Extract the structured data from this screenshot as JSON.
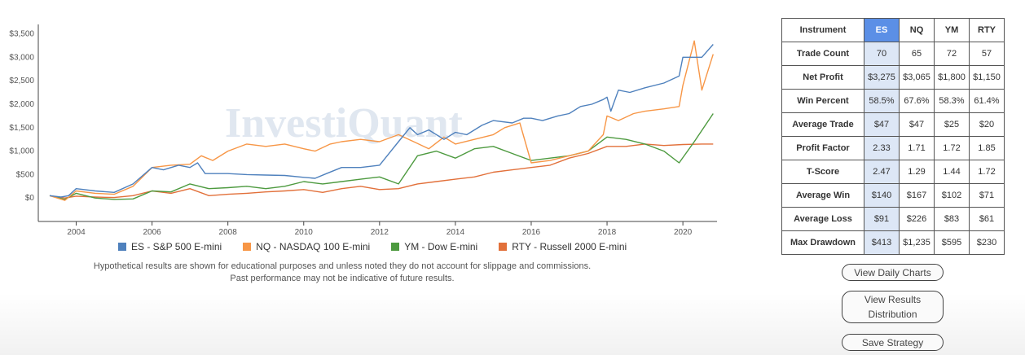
{
  "chart_data": {
    "type": "line",
    "ylim": [
      -500,
      3700
    ],
    "xlim": [
      2003.0,
      2020.9
    ],
    "y_ticks": [
      "$0",
      "$500",
      "$1,000",
      "$1,500",
      "$2,000",
      "$2,500",
      "$3,000",
      "$3,500"
    ],
    "y_tick_values": [
      0,
      500,
      1000,
      1500,
      2000,
      2500,
      3000,
      3500
    ],
    "x_ticks": [
      "2004",
      "2006",
      "2008",
      "2010",
      "2012",
      "2014",
      "2016",
      "2018",
      "2020"
    ],
    "x_tick_values": [
      2004,
      2006,
      2008,
      2010,
      2012,
      2014,
      2016,
      2018,
      2020
    ],
    "grid": false,
    "legend_position": "bottom",
    "watermark": "InvestiQuant",
    "series": [
      {
        "name": "ES - S&P 500 E-mini",
        "color": "#4f81bd",
        "x": [
          2003.3,
          2003.6,
          2003.8,
          2004.0,
          2004.5,
          2005.0,
          2005.5,
          2006.0,
          2006.3,
          2006.7,
          2007.0,
          2007.2,
          2007.4,
          2008.0,
          2008.5,
          2009.0,
          2009.5,
          2010.0,
          2010.3,
          2010.6,
          2011.0,
          2011.5,
          2012.0,
          2012.3,
          2012.5,
          2012.8,
          2013.0,
          2013.3,
          2013.7,
          2014.0,
          2014.3,
          2014.7,
          2015.0,
          2015.5,
          2015.8,
          2016.0,
          2016.3,
          2016.7,
          2017.0,
          2017.3,
          2017.6,
          2017.9,
          2018.0,
          2018.1,
          2018.3,
          2018.6,
          2019.0,
          2019.5,
          2019.9,
          2020.0,
          2020.2,
          2020.5,
          2020.8
        ],
        "y": [
          50,
          20,
          50,
          200,
          150,
          120,
          300,
          650,
          600,
          700,
          650,
          750,
          520,
          520,
          500,
          490,
          480,
          440,
          420,
          520,
          650,
          650,
          700,
          1000,
          1200,
          1500,
          1350,
          1450,
          1250,
          1400,
          1350,
          1550,
          1650,
          1600,
          1700,
          1700,
          1650,
          1750,
          1800,
          1950,
          2000,
          2100,
          2150,
          1850,
          2300,
          2250,
          2350,
          2450,
          2600,
          3000,
          3000,
          3000,
          3275
        ]
      },
      {
        "name": "NQ - NASDAQ 100 E-mini",
        "color": "#f79646",
        "x": [
          2003.3,
          2003.7,
          2004.0,
          2004.5,
          2005.0,
          2005.5,
          2006.0,
          2006.5,
          2007.0,
          2007.3,
          2007.6,
          2008.0,
          2008.5,
          2009.0,
          2009.5,
          2010.0,
          2010.3,
          2010.7,
          2011.0,
          2011.5,
          2012.0,
          2012.5,
          2012.9,
          2013.3,
          2013.7,
          2014.0,
          2014.5,
          2015.0,
          2015.3,
          2015.7,
          2016.0,
          2016.5,
          2017.0,
          2017.5,
          2017.9,
          2018.0,
          2018.3,
          2018.7,
          2019.0,
          2019.5,
          2019.9,
          2020.0,
          2020.3,
          2020.5,
          2020.8
        ],
        "y": [
          50,
          -50,
          150,
          100,
          80,
          250,
          650,
          700,
          720,
          900,
          800,
          1000,
          1150,
          1100,
          1150,
          1050,
          1000,
          1150,
          1200,
          1250,
          1200,
          1350,
          1200,
          1050,
          1300,
          1150,
          1250,
          1350,
          1500,
          1600,
          750,
          800,
          900,
          1000,
          1350,
          1750,
          1650,
          1800,
          1850,
          1900,
          1950,
          2400,
          3350,
          2300,
          3065
        ]
      },
      {
        "name": "YM - Dow E-mini",
        "color": "#4d9a3f",
        "x": [
          2003.3,
          2003.7,
          2004.0,
          2004.5,
          2005.0,
          2005.5,
          2006.0,
          2006.5,
          2007.0,
          2007.5,
          2008.0,
          2008.5,
          2009.0,
          2009.5,
          2010.0,
          2010.5,
          2011.0,
          2011.5,
          2012.0,
          2012.5,
          2013.0,
          2013.5,
          2014.0,
          2014.5,
          2015.0,
          2015.5,
          2016.0,
          2016.5,
          2017.0,
          2017.5,
          2018.0,
          2018.5,
          2019.0,
          2019.5,
          2019.9,
          2020.3,
          2020.8
        ],
        "y": [
          50,
          -30,
          100,
          0,
          -30,
          -20,
          150,
          130,
          300,
          200,
          220,
          250,
          200,
          250,
          350,
          300,
          350,
          400,
          450,
          300,
          900,
          1000,
          850,
          1050,
          1100,
          950,
          800,
          850,
          900,
          1000,
          1300,
          1250,
          1150,
          1000,
          750,
          1200,
          1800
        ]
      },
      {
        "name": "RTY - Russell 2000 E-mini",
        "color": "#e2703a",
        "x": [
          2003.3,
          2003.7,
          2004.0,
          2004.5,
          2005.0,
          2005.5,
          2006.0,
          2006.5,
          2007.0,
          2007.5,
          2008.0,
          2008.5,
          2009.0,
          2009.5,
          2010.0,
          2010.5,
          2011.0,
          2011.5,
          2012.0,
          2012.5,
          2013.0,
          2013.5,
          2014.0,
          2014.5,
          2015.0,
          2015.5,
          2016.0,
          2016.5,
          2017.0,
          2017.5,
          2018.0,
          2018.5,
          2019.0,
          2019.5,
          2020.0,
          2020.5,
          2020.8
        ],
        "y": [
          50,
          0,
          40,
          20,
          10,
          50,
          150,
          100,
          200,
          50,
          80,
          100,
          130,
          150,
          180,
          120,
          200,
          250,
          180,
          200,
          300,
          350,
          400,
          450,
          550,
          600,
          650,
          700,
          850,
          950,
          1100,
          1100,
          1150,
          1120,
          1140,
          1150,
          1150
        ]
      }
    ]
  },
  "legend": [
    {
      "label": "ES - S&P 500 E-mini",
      "color": "#4f81bd"
    },
    {
      "label": "NQ - NASDAQ 100 E-mini",
      "color": "#f79646"
    },
    {
      "label": "YM - Dow E-mini",
      "color": "#4d9a3f"
    },
    {
      "label": "RTY - Russell 2000 E-mini",
      "color": "#e2703a"
    }
  ],
  "disclaimer": {
    "line1": "Hypothetical results are shown for educational purposes and unless noted they do not account for slippage and commissions.",
    "line2": "Past performance may not be indicative of future results."
  },
  "stats_table": {
    "header": {
      "label": "Instrument",
      "es": "ES",
      "nq": "NQ",
      "ym": "YM",
      "rty": "RTY"
    },
    "rows": [
      {
        "label": "Trade Count",
        "es": "70",
        "nq": "65",
        "ym": "72",
        "rty": "57"
      },
      {
        "label": "Net Profit",
        "es": "$3,275",
        "nq": "$3,065",
        "ym": "$1,800",
        "rty": "$1,150"
      },
      {
        "label": "Win Percent",
        "es": "58.5%",
        "nq": "67.6%",
        "ym": "58.3%",
        "rty": "61.4%"
      },
      {
        "label": "Average Trade",
        "es": "$47",
        "nq": "$47",
        "ym": "$25",
        "rty": "$20"
      },
      {
        "label": "Profit Factor",
        "es": "2.33",
        "nq": "1.71",
        "ym": "1.72",
        "rty": "1.85"
      },
      {
        "label": "T-Score",
        "es": "2.47",
        "nq": "1.29",
        "ym": "1.44",
        "rty": "1.72"
      },
      {
        "label": "Average Win",
        "es": "$140",
        "nq": "$167",
        "ym": "$102",
        "rty": "$71"
      },
      {
        "label": "Average Loss",
        "es": "$91",
        "nq": "$226",
        "ym": "$83",
        "rty": "$61"
      },
      {
        "label": "Max Drawdown",
        "es": "$413",
        "nq": "$1,235",
        "ym": "$595",
        "rty": "$230"
      }
    ]
  },
  "buttons": {
    "daily_charts": "View Daily Charts",
    "results_distribution_line1": "View Results",
    "results_distribution_line2": "Distribution",
    "save_strategy": "Save Strategy"
  }
}
